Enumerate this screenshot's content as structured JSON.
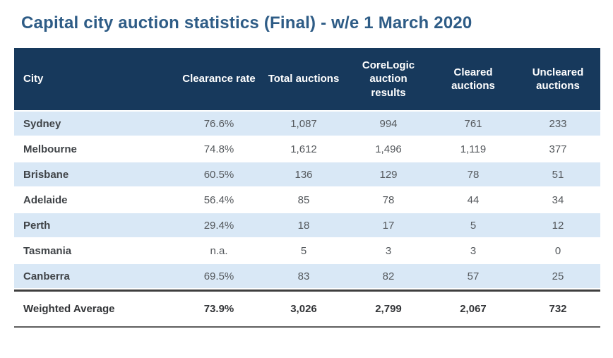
{
  "title": "Capital city auction statistics (Final) - w/e 1 March 2020",
  "table": {
    "columns": [
      "City",
      "Clearance rate",
      "Total auctions",
      "CoreLogic auction results",
      "Cleared auctions",
      "Uncleared auctions"
    ],
    "rows": [
      [
        "Sydney",
        "76.6%",
        "1,087",
        "994",
        "761",
        "233"
      ],
      [
        "Melbourne",
        "74.8%",
        "1,612",
        "1,496",
        "1,119",
        "377"
      ],
      [
        "Brisbane",
        "60.5%",
        "136",
        "129",
        "78",
        "51"
      ],
      [
        "Adelaide",
        "56.4%",
        "85",
        "78",
        "44",
        "34"
      ],
      [
        "Perth",
        "29.4%",
        "18",
        "17",
        "5",
        "12"
      ],
      [
        "Tasmania",
        "n.a.",
        "5",
        "3",
        "3",
        "0"
      ],
      [
        "Canberra",
        "69.5%",
        "83",
        "82",
        "57",
        "25"
      ]
    ],
    "footer_row": [
      "Weighted Average",
      "73.9%",
      "3,026",
      "2,799",
      "2,067",
      "732"
    ]
  },
  "colors": {
    "title_text": "#2E5C86",
    "header_bg": "#17395C",
    "header_text": "#FFFFFF",
    "row_alt_bg": "#D9E8F6",
    "row_bg": "#FFFFFF",
    "city_text": "#404448",
    "value_text": "#54585C",
    "footer_text": "#333538",
    "footer_top_border": "#3F3F3F",
    "footer_bottom_border": "#5E5E5E"
  },
  "chart_data": {
    "type": "table",
    "title": "Capital city auction statistics (Final) - w/e 1 March 2020",
    "columns": [
      "City",
      "Clearance rate",
      "Total auctions",
      "CoreLogic auction results",
      "Cleared auctions",
      "Uncleared auctions"
    ],
    "rows": [
      {
        "city": "Sydney",
        "clearance_rate": "76.6%",
        "total_auctions": 1087,
        "corelogic_auction_results": 994,
        "cleared_auctions": 761,
        "uncleared_auctions": 233
      },
      {
        "city": "Melbourne",
        "clearance_rate": "74.8%",
        "total_auctions": 1612,
        "corelogic_auction_results": 1496,
        "cleared_auctions": 1119,
        "uncleared_auctions": 377
      },
      {
        "city": "Brisbane",
        "clearance_rate": "60.5%",
        "total_auctions": 136,
        "corelogic_auction_results": 129,
        "cleared_auctions": 78,
        "uncleared_auctions": 51
      },
      {
        "city": "Adelaide",
        "clearance_rate": "56.4%",
        "total_auctions": 85,
        "corelogic_auction_results": 78,
        "cleared_auctions": 44,
        "uncleared_auctions": 34
      },
      {
        "city": "Perth",
        "clearance_rate": "29.4%",
        "total_auctions": 18,
        "corelogic_auction_results": 17,
        "cleared_auctions": 5,
        "uncleared_auctions": 12
      },
      {
        "city": "Tasmania",
        "clearance_rate": "n.a.",
        "total_auctions": 5,
        "corelogic_auction_results": 3,
        "cleared_auctions": 3,
        "uncleared_auctions": 0
      },
      {
        "city": "Canberra",
        "clearance_rate": "69.5%",
        "total_auctions": 83,
        "corelogic_auction_results": 82,
        "cleared_auctions": 57,
        "uncleared_auctions": 25
      },
      {
        "city": "Weighted Average",
        "clearance_rate": "73.9%",
        "total_auctions": 3026,
        "corelogic_auction_results": 2799,
        "cleared_auctions": 2067,
        "uncleared_auctions": 732
      }
    ]
  }
}
